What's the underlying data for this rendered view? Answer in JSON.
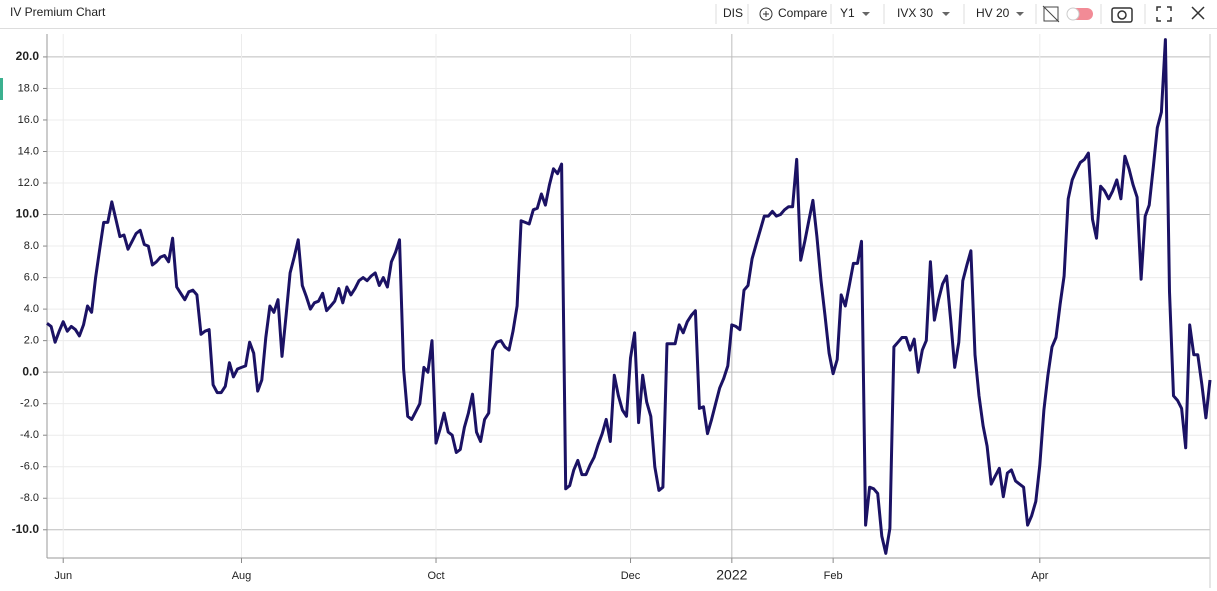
{
  "toolbar": {
    "symbol": "DIS",
    "compare": "Compare",
    "period": "Y1",
    "iv": "IVX 30",
    "hv": "HV 20"
  },
  "chart_data": {
    "type": "line",
    "title": "IV Premium Chart",
    "color": "#1b1264",
    "categories": [
      null,
      null,
      null,
      null,
      "Jun",
      null,
      null,
      null,
      null,
      null,
      null,
      null,
      null,
      null,
      null,
      null,
      null,
      null,
      null,
      null,
      null,
      null,
      null,
      null,
      null,
      null,
      null,
      null,
      null,
      null,
      null,
      null,
      null,
      null,
      null,
      null,
      null,
      null,
      null,
      null,
      null,
      null,
      null,
      null,
      null,
      null,
      null,
      null,
      "Aug",
      null,
      null,
      null,
      null,
      null,
      null,
      null,
      null,
      null,
      null,
      null,
      null,
      null,
      null,
      null,
      null,
      null,
      null,
      null,
      null,
      null,
      null,
      null,
      null,
      null,
      null,
      null,
      null,
      null,
      null,
      null,
      null,
      null,
      null,
      null,
      null,
      null,
      null,
      null,
      null,
      null,
      null,
      null,
      null,
      null,
      null,
      null,
      "Oct",
      null,
      null,
      null,
      null,
      null,
      null,
      null,
      null,
      null,
      null,
      null,
      null,
      null,
      null,
      null,
      null,
      null,
      null,
      null,
      null,
      null,
      null,
      null,
      null,
      null,
      null,
      null,
      null,
      null,
      null,
      null,
      null,
      null,
      null,
      null,
      null,
      null,
      null,
      null,
      null,
      null,
      null,
      null,
      null,
      null,
      null,
      null,
      "Dec",
      null,
      null,
      null,
      null,
      null,
      null,
      null,
      null,
      null,
      null,
      null,
      null,
      null,
      null,
      null,
      null,
      null,
      null,
      null,
      null,
      null,
      null,
      null,
      null,
      "2022",
      null,
      null,
      null,
      null,
      null,
      null,
      null,
      null,
      null,
      null,
      null,
      null,
      null,
      null,
      null,
      null,
      null,
      null,
      null,
      null,
      null,
      null,
      null,
      null,
      "Feb",
      null,
      null,
      null,
      null,
      null,
      null,
      null,
      null,
      null,
      null,
      null,
      null,
      null,
      null,
      null,
      null,
      null,
      null,
      null,
      null,
      null,
      null,
      null,
      null,
      null,
      null,
      null,
      null,
      null,
      null,
      null,
      null,
      null,
      null,
      null,
      null,
      null,
      null,
      null,
      null,
      null,
      null,
      null,
      null,
      null,
      null,
      null,
      null,
      null,
      null,
      "Apr",
      null,
      null,
      null,
      null,
      null,
      null,
      null,
      null,
      null,
      null,
      null,
      null,
      null,
      null,
      null,
      null,
      null,
      null,
      null,
      null,
      null,
      null,
      null,
      null,
      null,
      null,
      null,
      null,
      null,
      null,
      null,
      null,
      null,
      null,
      null,
      null,
      null,
      null,
      null,
      null,
      null,
      null
    ],
    "values": [
      3.1,
      2.9,
      1.9,
      2.6,
      3.2,
      2.6,
      2.9,
      2.7,
      2.3,
      3.0,
      4.2,
      3.8,
      6.0,
      7.8,
      9.5,
      9.5,
      10.8,
      9.7,
      8.6,
      8.7,
      7.8,
      8.3,
      8.8,
      9.0,
      8.1,
      8.0,
      6.8,
      7.0,
      7.3,
      7.4,
      7.0,
      8.5,
      5.4,
      5.0,
      4.6,
      5.1,
      5.2,
      4.9,
      2.4,
      2.6,
      2.7,
      -0.8,
      -1.3,
      -1.3,
      -0.9,
      0.6,
      -0.3,
      0.2,
      0.3,
      0.4,
      1.9,
      1.2,
      -1.2,
      -0.5,
      2.2,
      4.2,
      3.8,
      4.6,
      1.0,
      3.6,
      6.3,
      7.3,
      8.4,
      5.5,
      4.8,
      4.0,
      4.4,
      4.5,
      5.0,
      3.9,
      4.2,
      4.5,
      5.3,
      4.4,
      5.4,
      4.9,
      5.3,
      5.8,
      6.0,
      5.8,
      6.1,
      6.3,
      5.5,
      6.0,
      5.4,
      7.0,
      7.6,
      8.4,
      0.2,
      -2.8,
      -3.0,
      -2.5,
      -2.0,
      0.3,
      0.0,
      2.0,
      -4.5,
      -3.6,
      -2.6,
      -3.8,
      -4.0,
      -5.1,
      -4.9,
      -3.5,
      -2.6,
      -1.4,
      -3.8,
      -4.4,
      -3.0,
      -2.6,
      1.4,
      1.9,
      2.0,
      1.6,
      1.4,
      2.6,
      4.2,
      9.6,
      9.5,
      9.4,
      10.3,
      10.4,
      11.3,
      10.6,
      11.9,
      12.9,
      12.6,
      13.2,
      -7.4,
      -7.2,
      -6.2,
      -5.6,
      -6.5,
      -6.5,
      -5.9,
      -5.4,
      -4.6,
      -3.9,
      -3.0,
      -4.4,
      -0.2,
      -1.5,
      -2.4,
      -2.8,
      0.9,
      2.5,
      -3.2,
      -0.2,
      -1.9,
      -2.8,
      -6.0,
      -7.5,
      -7.3,
      1.8,
      1.8,
      1.8,
      3.0,
      2.5,
      3.2,
      3.6,
      3.9,
      -2.3,
      -2.2,
      -3.9,
      -3.0,
      -2.0,
      -1.0,
      -0.4,
      0.4,
      3.0,
      2.9,
      2.7,
      5.2,
      5.5,
      7.2,
      8.1,
      9.0,
      9.9,
      9.9,
      10.2,
      9.9,
      10.0,
      10.3,
      10.5,
      10.5,
      13.5,
      7.1,
      8.3,
      9.6,
      10.9,
      8.6,
      5.8,
      3.6,
      1.2,
      -0.1,
      0.8,
      4.9,
      4.2,
      5.5,
      6.9,
      6.9,
      8.3,
      -9.7,
      -7.3,
      -7.4,
      -7.7,
      -10.4,
      -11.5,
      -9.9,
      1.6,
      1.9,
      2.2,
      2.2,
      1.4,
      2.1,
      0.0,
      1.4,
      2.0,
      7.0,
      3.3,
      4.6,
      5.6,
      6.1,
      3.3,
      0.3,
      1.9,
      5.8,
      6.8,
      7.7,
      1.1,
      -1.5,
      -3.4,
      -4.7,
      -7.1,
      -6.6,
      -6.1,
      -7.9,
      -6.4,
      -6.2,
      -6.9,
      -7.1,
      -7.3,
      -9.7,
      -9.1,
      -8.2,
      -5.9,
      -2.4,
      -0.2,
      1.6,
      2.2,
      4.3,
      6.1,
      11.0,
      12.2,
      12.8,
      13.3,
      13.5,
      13.9,
      9.7,
      8.5,
      11.8,
      11.5,
      11.0,
      11.5,
      12.2,
      11.0,
      13.7,
      12.9,
      11.9,
      11.1,
      5.9,
      9.9,
      10.6,
      13.0,
      15.5,
      16.5,
      21.1,
      5.1,
      -1.5,
      -1.8,
      -2.3,
      -4.8,
      3.0,
      1.1,
      1.1,
      -0.8,
      -2.9,
      -0.5
    ],
    "ylim": [
      -11.6,
      21.2
    ],
    "yticks": [
      {
        "value": -10,
        "label": "-10.0"
      },
      {
        "value": -8,
        "label": "-8.0"
      },
      {
        "value": -6,
        "label": "-6.0"
      },
      {
        "value": -4,
        "label": "-4.0"
      },
      {
        "value": -2,
        "label": "-2.0"
      },
      {
        "value": 0,
        "label": "0.0"
      },
      {
        "value": 2,
        "label": "2.0"
      },
      {
        "value": 4,
        "label": "4.0"
      },
      {
        "value": 6,
        "label": "6.0"
      },
      {
        "value": 8,
        "label": "8.0"
      },
      {
        "value": 10,
        "label": "10.0"
      },
      {
        "value": 12,
        "label": "12.0"
      },
      {
        "value": 14,
        "label": "14.0"
      },
      {
        "value": 16,
        "label": "16.0"
      },
      {
        "value": 18,
        "label": "18.0"
      },
      {
        "value": 20,
        "label": "20.0"
      }
    ],
    "grid": true
  }
}
